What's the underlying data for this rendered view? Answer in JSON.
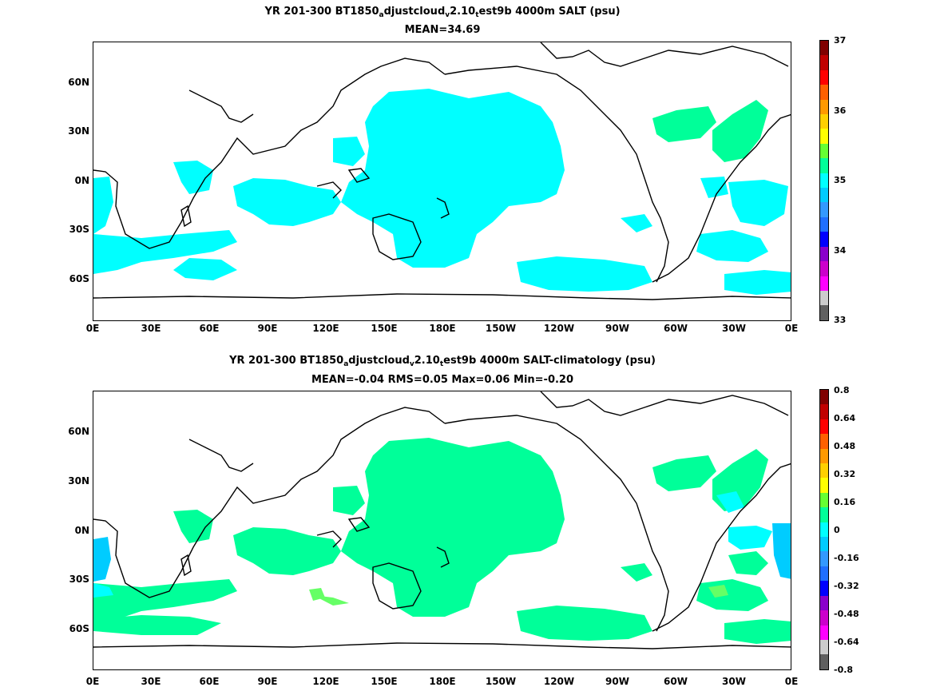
{
  "colorbar_colors": [
    "#800000",
    "#c00000",
    "#ff0000",
    "#ff6000",
    "#ff9900",
    "#ffd000",
    "#ffff00",
    "#66ff33",
    "#00ff99",
    "#00ffff",
    "#00ccff",
    "#3399ff",
    "#1f6fff",
    "#0000ff",
    "#8a00cc",
    "#cc00cc",
    "#ff00ff",
    "#cccccc",
    "#606060"
  ],
  "coastline_color": "#000000",
  "panels": [
    {
      "title_parts": [
        "YR 201-300 BT1850",
        "a",
        "djustcloud",
        "v",
        "2.10",
        "t",
        "est9b 4000m SALT (psu)"
      ],
      "subtitle": "MEAN=34.69",
      "colorbar_labels": [
        "37",
        "36",
        "35",
        "34",
        "33"
      ],
      "fields": [
        {
          "color": "#00ffff",
          "name": "pacific-deep-cyan"
        },
        {
          "color": "#00ff99",
          "name": "atlantic-green"
        }
      ]
    },
    {
      "title_parts": [
        "YR 201-300 BT1850",
        "a",
        "djustcloud",
        "v",
        "2.10",
        "t",
        "est9b 4000m SALT-climatology (psu)"
      ],
      "subtitle": "MEAN=-0.04   RMS=0.05   Max=0.06   Min=-0.20",
      "colorbar_labels": [
        "0.8",
        "0.64",
        "0.48",
        "0.32",
        "0.16",
        "0",
        "-0.16",
        "-0.32",
        "-0.48",
        "-0.64",
        "-0.8"
      ],
      "fields": [
        {
          "color": "#00ff99",
          "name": "anomaly-green"
        },
        {
          "color": "#00ffff",
          "name": "anomaly-cyan"
        },
        {
          "color": "#00ccff",
          "name": "anomaly-blue"
        },
        {
          "color": "#66ff66",
          "name": "anomaly-lightgreen"
        }
      ]
    }
  ],
  "axes": {
    "x_ticks": [
      "0E",
      "30E",
      "60E",
      "90E",
      "120E",
      "150E",
      "180E",
      "150W",
      "120W",
      "90W",
      "60W",
      "30W",
      "0E"
    ],
    "y_ticks": [
      "60N",
      "30N",
      "0N",
      "30S",
      "60S"
    ]
  }
}
